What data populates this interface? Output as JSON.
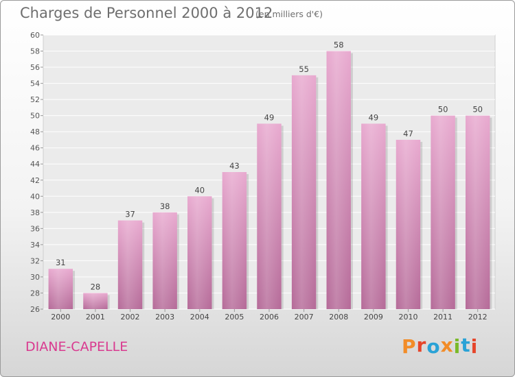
{
  "header": {
    "title": "Charges de Personnel 2000 à 2012",
    "subtitle": "(en milliers d'€)"
  },
  "footer": {
    "commune": "DIANE-CAPELLE",
    "brand": "Proxiti"
  },
  "colors": {
    "bar": "#d98bb8",
    "bar_light": "#e8a9cf",
    "bar_dark": "#b56a98",
    "commune": "#d9398f",
    "brand_letters": [
      "#f28c28",
      "#e6452a",
      "#2aa2d6",
      "#f28c28",
      "#7ab929",
      "#2aa2d6",
      "#e6452a"
    ]
  },
  "chart_data": {
    "type": "bar",
    "categories": [
      "2000",
      "2001",
      "2002",
      "2003",
      "2004",
      "2005",
      "2006",
      "2007",
      "2008",
      "2009",
      "2010",
      "2011",
      "2012"
    ],
    "values": [
      31,
      28,
      37,
      38,
      40,
      43,
      49,
      55,
      58,
      49,
      47,
      50,
      50
    ],
    "ylim": [
      26,
      60
    ],
    "yticks": [
      26,
      28,
      30,
      32,
      34,
      36,
      38,
      40,
      42,
      44,
      46,
      48,
      50,
      52,
      54,
      56,
      58,
      60
    ],
    "grid": true,
    "legend": "none"
  }
}
